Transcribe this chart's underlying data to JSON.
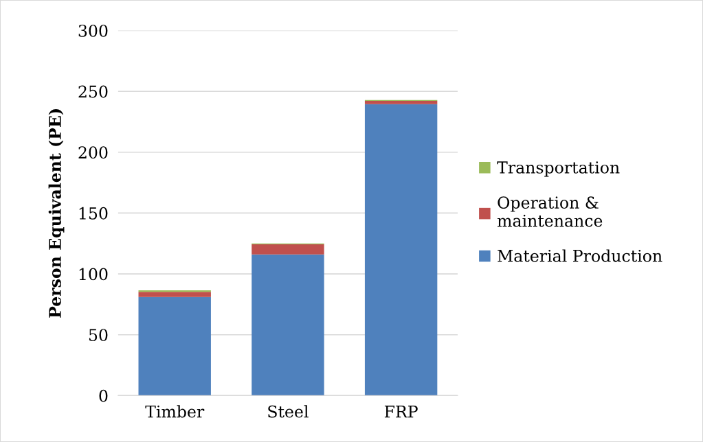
{
  "chart_data": {
    "type": "bar",
    "stacked": true,
    "ylabel": "Person Equivalent (PE)",
    "categories": [
      "Timber",
      "Steel",
      "FRP"
    ],
    "series": [
      {
        "name": "Material Production",
        "color": "#4f81bd",
        "values": [
          81,
          116,
          239.5
        ]
      },
      {
        "name": "Operation &\nmaintenance",
        "color": "#c0504d",
        "values": [
          4.2,
          8.3,
          2.6
        ]
      },
      {
        "name": "Transportation",
        "color": "#9bbb59",
        "values": [
          1.3,
          0.7,
          0.8
        ]
      }
    ],
    "ylim": [
      0,
      300
    ],
    "yticks": [
      0,
      50,
      100,
      150,
      200,
      250,
      300
    ],
    "grid": "y",
    "legend": "right"
  }
}
